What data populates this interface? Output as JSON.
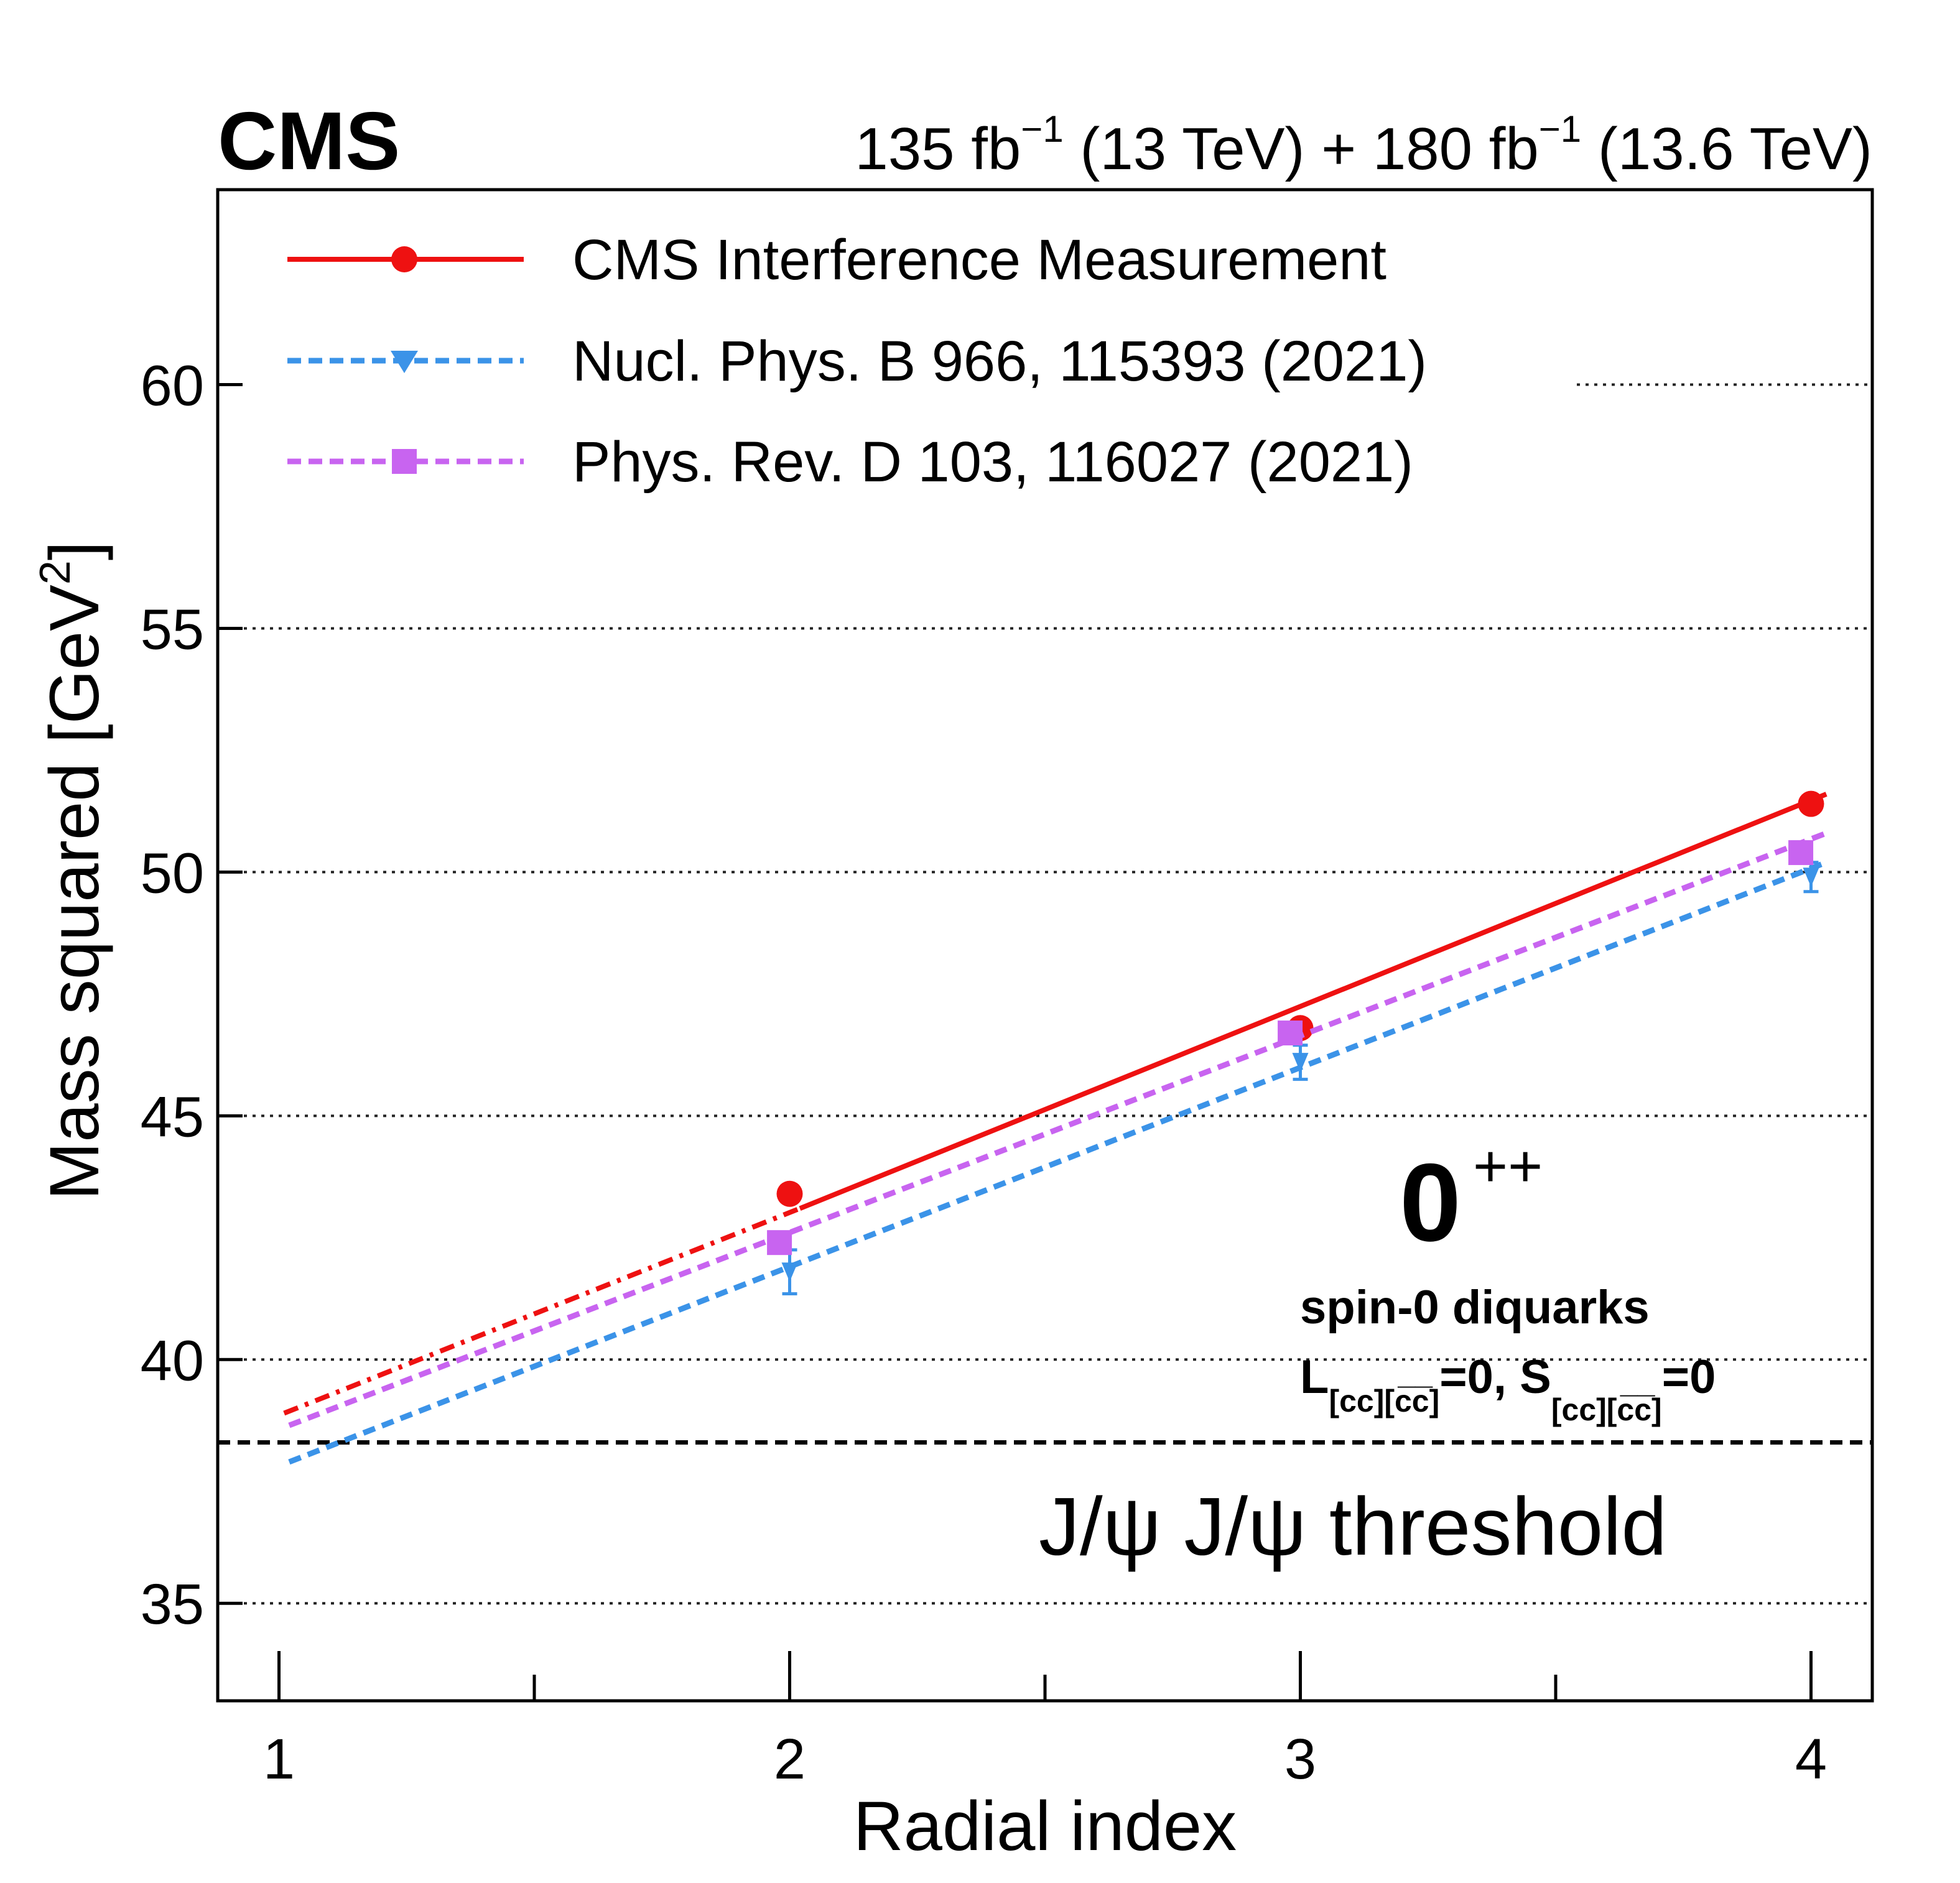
{
  "chart_data": {
    "type": "line",
    "experiment_label": "CMS",
    "lumi_label": {
      "part1_value": "135 fb",
      "part1_exp": "−1",
      "part1_energy": " (13 TeV) + 180 fb",
      "part2_exp": "−1",
      "part2_energy": " (13.6 TeV)"
    },
    "xlabel": "Radial index",
    "ylabel": "Mass squared [GeV",
    "ylabel_exp": "2",
    "ylabel_close": "]",
    "xlim": [
      0.88,
      4.12
    ],
    "ylim": [
      33,
      64
    ],
    "x_ticks": [
      1,
      2,
      3,
      4
    ],
    "x_tick_labels": [
      "1",
      "2",
      "3",
      "4"
    ],
    "x_minor_ticks": [
      1.5,
      2.5,
      3.5
    ],
    "y_ticks": [
      35,
      40,
      45,
      50,
      55,
      60
    ],
    "y_tick_labels": [
      "35",
      "40",
      "45",
      "50",
      "55",
      "60"
    ],
    "grid": "horizontal dotted",
    "legend_placement": "top-left",
    "series": [
      {
        "name": "CMS Interference Measurement",
        "color": "#ee1111",
        "marker": "circle",
        "line_style": "solid",
        "points": [
          {
            "x": 2,
            "y": 43.4
          },
          {
            "x": 3,
            "y": 46.8
          },
          {
            "x": 4,
            "y": 51.4
          }
        ],
        "fit": {
          "x_start": 2.02,
          "x_end": 4.03,
          "y_start": 43.1,
          "y_end": 51.6
        },
        "extrapolation": {
          "x_start": 1.01,
          "x_end": 2.02,
          "y_start": 38.9,
          "y_end": 43.1,
          "line_style": "dash-dot"
        }
      },
      {
        "name": "Nucl. Phys. B 966, 115393 (2021)",
        "color": "#3b93e8",
        "marker": "triangle-down",
        "line_style": "dashed",
        "points": [
          {
            "x": 2,
            "y": 41.8,
            "yerr": 0.45
          },
          {
            "x": 3,
            "y": 46.1,
            "yerr": 0.35
          },
          {
            "x": 4,
            "y": 49.9,
            "yerr": 0.3
          }
        ],
        "fit": {
          "x_start": 1.02,
          "x_end": 4.03,
          "y_start": 37.9,
          "y_end": 50.2
        }
      },
      {
        "name": "Phys. Rev. D 103, 116027 (2021)",
        "color": "#c864f0",
        "marker": "square",
        "line_style": "dashed",
        "points": [
          {
            "x": 1.98,
            "y": 42.4
          },
          {
            "x": 2.98,
            "y": 46.7
          },
          {
            "x": 3.98,
            "y": 50.4
          }
        ],
        "fit": {
          "x_start": 1.02,
          "x_end": 4.03,
          "y_start": 38.65,
          "y_end": 50.8
        }
      }
    ],
    "threshold": {
      "y": 38.3,
      "label": "J/ψ J/ψ threshold",
      "line_style": "dashed",
      "color": "#000000"
    },
    "annotations": {
      "state_main": "0",
      "state_sup": "++",
      "line1": "spin-0 diquarks",
      "line2_a": "L",
      "line2_a_sub": "[cc][c̅c̅]",
      "line2_mid": "=0, S",
      "line2_b_sub": "[cc][c̅c̅]",
      "line2_end": "=0"
    }
  }
}
